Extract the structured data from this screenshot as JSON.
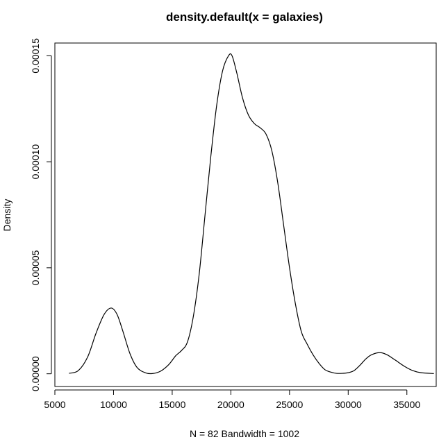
{
  "chart_data": {
    "type": "line",
    "title": "density.default(x = galaxies)",
    "xlabel": "N = 82   Bandwidth = 1002",
    "ylabel": "Density",
    "xlim": [
      5000,
      37500
    ],
    "ylim": [
      -6e-06,
      0.000156
    ],
    "x_ticks": [
      5000,
      10000,
      15000,
      20000,
      25000,
      30000,
      35000
    ],
    "x_tick_labels": [
      "5000",
      "10000",
      "15000",
      "20000",
      "25000",
      "30000",
      "35000"
    ],
    "y_ticks": [
      0,
      5e-05,
      0.0001,
      0.00015
    ],
    "y_tick_labels": [
      "0.00000",
      "0.00005",
      "0.00010",
      "0.00015"
    ],
    "grid": false,
    "legend": "none",
    "line_color": "#000000",
    "series": [
      {
        "x": [
          6200,
          7000,
          7800,
          8500,
          9200,
          9800,
          10300,
          10800,
          11400,
          12000,
          12700,
          13300,
          14000,
          14700,
          15300,
          15800,
          16300,
          16800,
          17300,
          17800,
          18300,
          18800,
          19300,
          19800,
          20100,
          20500,
          21000,
          21500,
          22000,
          22500,
          23000,
          23500,
          24000,
          24500,
          25000,
          25500,
          26000,
          26500,
          27000,
          27500,
          28000,
          28500,
          29000,
          29500,
          30000,
          30500,
          31000,
          31500,
          32000,
          32700,
          33300,
          34000,
          34800,
          35500,
          36200,
          37300
        ],
        "y": [
          2e-07,
          1.5e-06,
          8e-06,
          1.9e-05,
          2.8e-05,
          3.1e-05,
          2.8e-05,
          2e-05,
          9.5e-06,
          3e-06,
          5e-07,
          1e-07,
          1.2e-06,
          4.3e-06,
          8.5e-06,
          1.1e-05,
          1.5e-05,
          2.7e-05,
          4.7e-05,
          7.5e-05,
          0.000103,
          0.000127,
          0.000143,
          0.00015,
          0.00015,
          0.000142,
          0.00013,
          0.000122,
          0.000118,
          0.000116,
          0.000113,
          0.000105,
          9e-05,
          7e-05,
          5e-05,
          3.3e-05,
          2e-05,
          1.4e-05,
          9e-06,
          5e-06,
          2e-06,
          8e-07,
          2e-07,
          2e-07,
          5e-07,
          1.5e-06,
          4e-06,
          7e-06,
          9e-06,
          1e-05,
          9e-06,
          6.5e-06,
          3.5e-06,
          1.5e-06,
          5e-07,
          1e-07
        ]
      }
    ]
  }
}
